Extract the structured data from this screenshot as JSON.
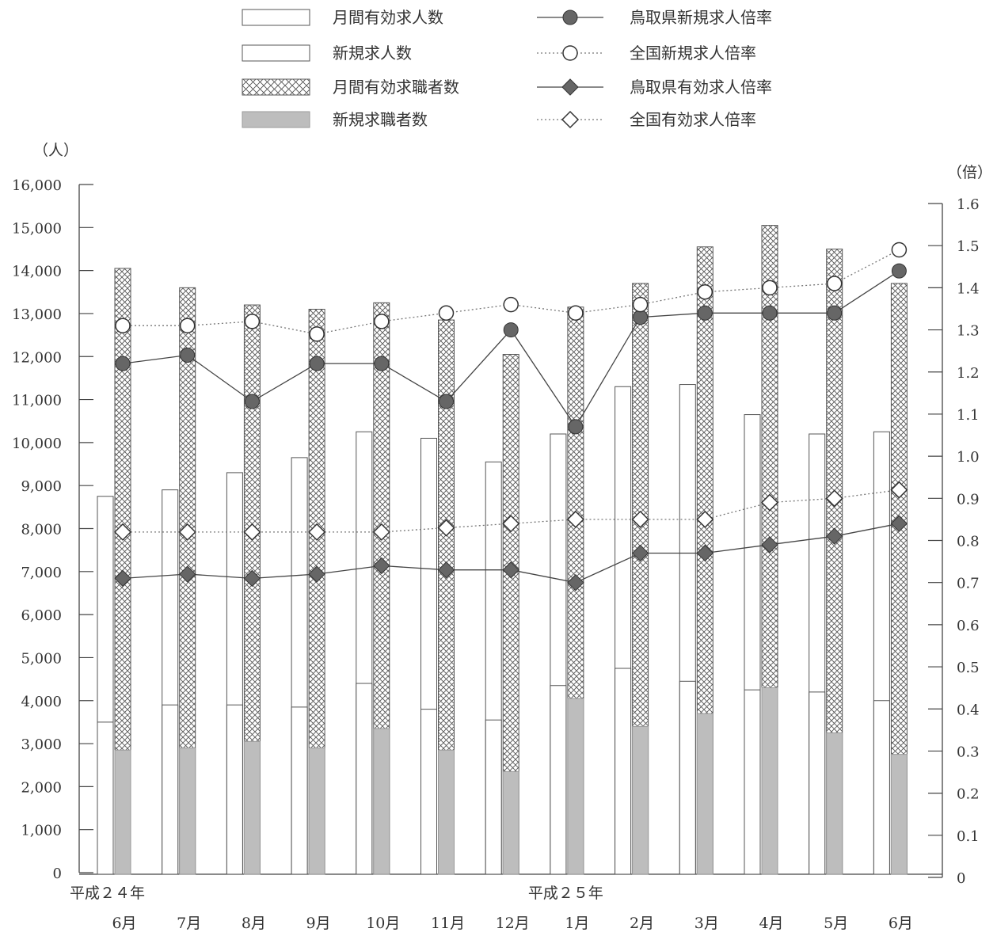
{
  "chart_data": {
    "type": "bar",
    "legend_position": "top",
    "categories": [
      "6月",
      "7月",
      "8月",
      "9月",
      "10月",
      "11月",
      "12月",
      "1月",
      "2月",
      "3月",
      "4月",
      "5月",
      "6月"
    ],
    "era_labels": [
      {
        "text": "平成２４年",
        "category_index": 0
      },
      {
        "text": "平成２５年",
        "category_index": 7
      }
    ],
    "left_axis": {
      "unit_label": "（人）",
      "range": [
        0,
        16000
      ],
      "ticks": [
        0,
        1000,
        2000,
        3000,
        4000,
        5000,
        6000,
        7000,
        8000,
        9000,
        10000,
        11000,
        12000,
        13000,
        14000,
        15000,
        16000
      ],
      "tick_labels": [
        "0",
        "1,000",
        "2,000",
        "3,000",
        "4,000",
        "5,000",
        "6,000",
        "7,000",
        "8,000",
        "9,000",
        "10,000",
        "11,000",
        "12,000",
        "13,000",
        "14,000",
        "15,000",
        "16,000"
      ]
    },
    "right_axis": {
      "unit_label": "（倍）",
      "range": [
        0,
        1.6
      ],
      "ticks": [
        0,
        0.1,
        0.2,
        0.3,
        0.4,
        0.5,
        0.6,
        0.7,
        0.8,
        0.9,
        1.0,
        1.1,
        1.2,
        1.3,
        1.4,
        1.5,
        1.6
      ],
      "tick_labels": [
        "0",
        "0.1",
        "0.2",
        "0.3",
        "0.4",
        "0.5",
        "0.6",
        "0.7",
        "0.8",
        "0.9",
        "1.0",
        "1.1",
        "1.2",
        "1.3",
        "1.4",
        "1.5",
        "1.6"
      ]
    },
    "bar_series": [
      {
        "name": "月間有効求人数",
        "style": "white",
        "values": [
          8750,
          8900,
          9300,
          9650,
          10250,
          10100,
          9550,
          10200,
          11300,
          11350,
          10650,
          10200,
          10250
        ]
      },
      {
        "name": "新規求人数",
        "style": "white",
        "values": [
          3500,
          3900,
          3900,
          3850,
          4400,
          3800,
          3550,
          4350,
          4750,
          4450,
          4250,
          4200,
          4000
        ]
      },
      {
        "name": "月間有効求職者数",
        "style": "crosshatch",
        "values": [
          14050,
          13600,
          13200,
          13100,
          13250,
          12850,
          12050,
          13150,
          13700,
          14550,
          15050,
          14500,
          13700
        ]
      },
      {
        "name": "新規求職者数",
        "style": "gray",
        "values": [
          2850,
          2900,
          3050,
          2900,
          3350,
          2850,
          2350,
          4050,
          3400,
          3700,
          4300,
          3250,
          2750
        ]
      }
    ],
    "line_series": [
      {
        "name": "鳥取県新規求人倍率",
        "marker": "filled-circle",
        "line": "solid",
        "values": [
          1.22,
          1.24,
          1.13,
          1.22,
          1.22,
          1.13,
          1.3,
          1.07,
          1.33,
          1.34,
          1.34,
          1.34,
          1.44
        ]
      },
      {
        "name": "全国新規求人倍率",
        "marker": "open-circle",
        "line": "dotted",
        "values": [
          1.31,
          1.31,
          1.32,
          1.29,
          1.32,
          1.34,
          1.36,
          1.34,
          1.36,
          1.39,
          1.4,
          1.41,
          1.49
        ]
      },
      {
        "name": "鳥取県有効求人倍率",
        "marker": "filled-diamond",
        "line": "solid",
        "values": [
          0.71,
          0.72,
          0.71,
          0.72,
          0.74,
          0.73,
          0.73,
          0.7,
          0.77,
          0.77,
          0.79,
          0.81,
          0.84
        ]
      },
      {
        "name": "全国有効求人倍率",
        "marker": "open-diamond",
        "line": "dotted",
        "values": [
          0.82,
          0.82,
          0.82,
          0.82,
          0.82,
          0.83,
          0.84,
          0.85,
          0.85,
          0.85,
          0.89,
          0.9,
          0.92
        ]
      }
    ]
  }
}
